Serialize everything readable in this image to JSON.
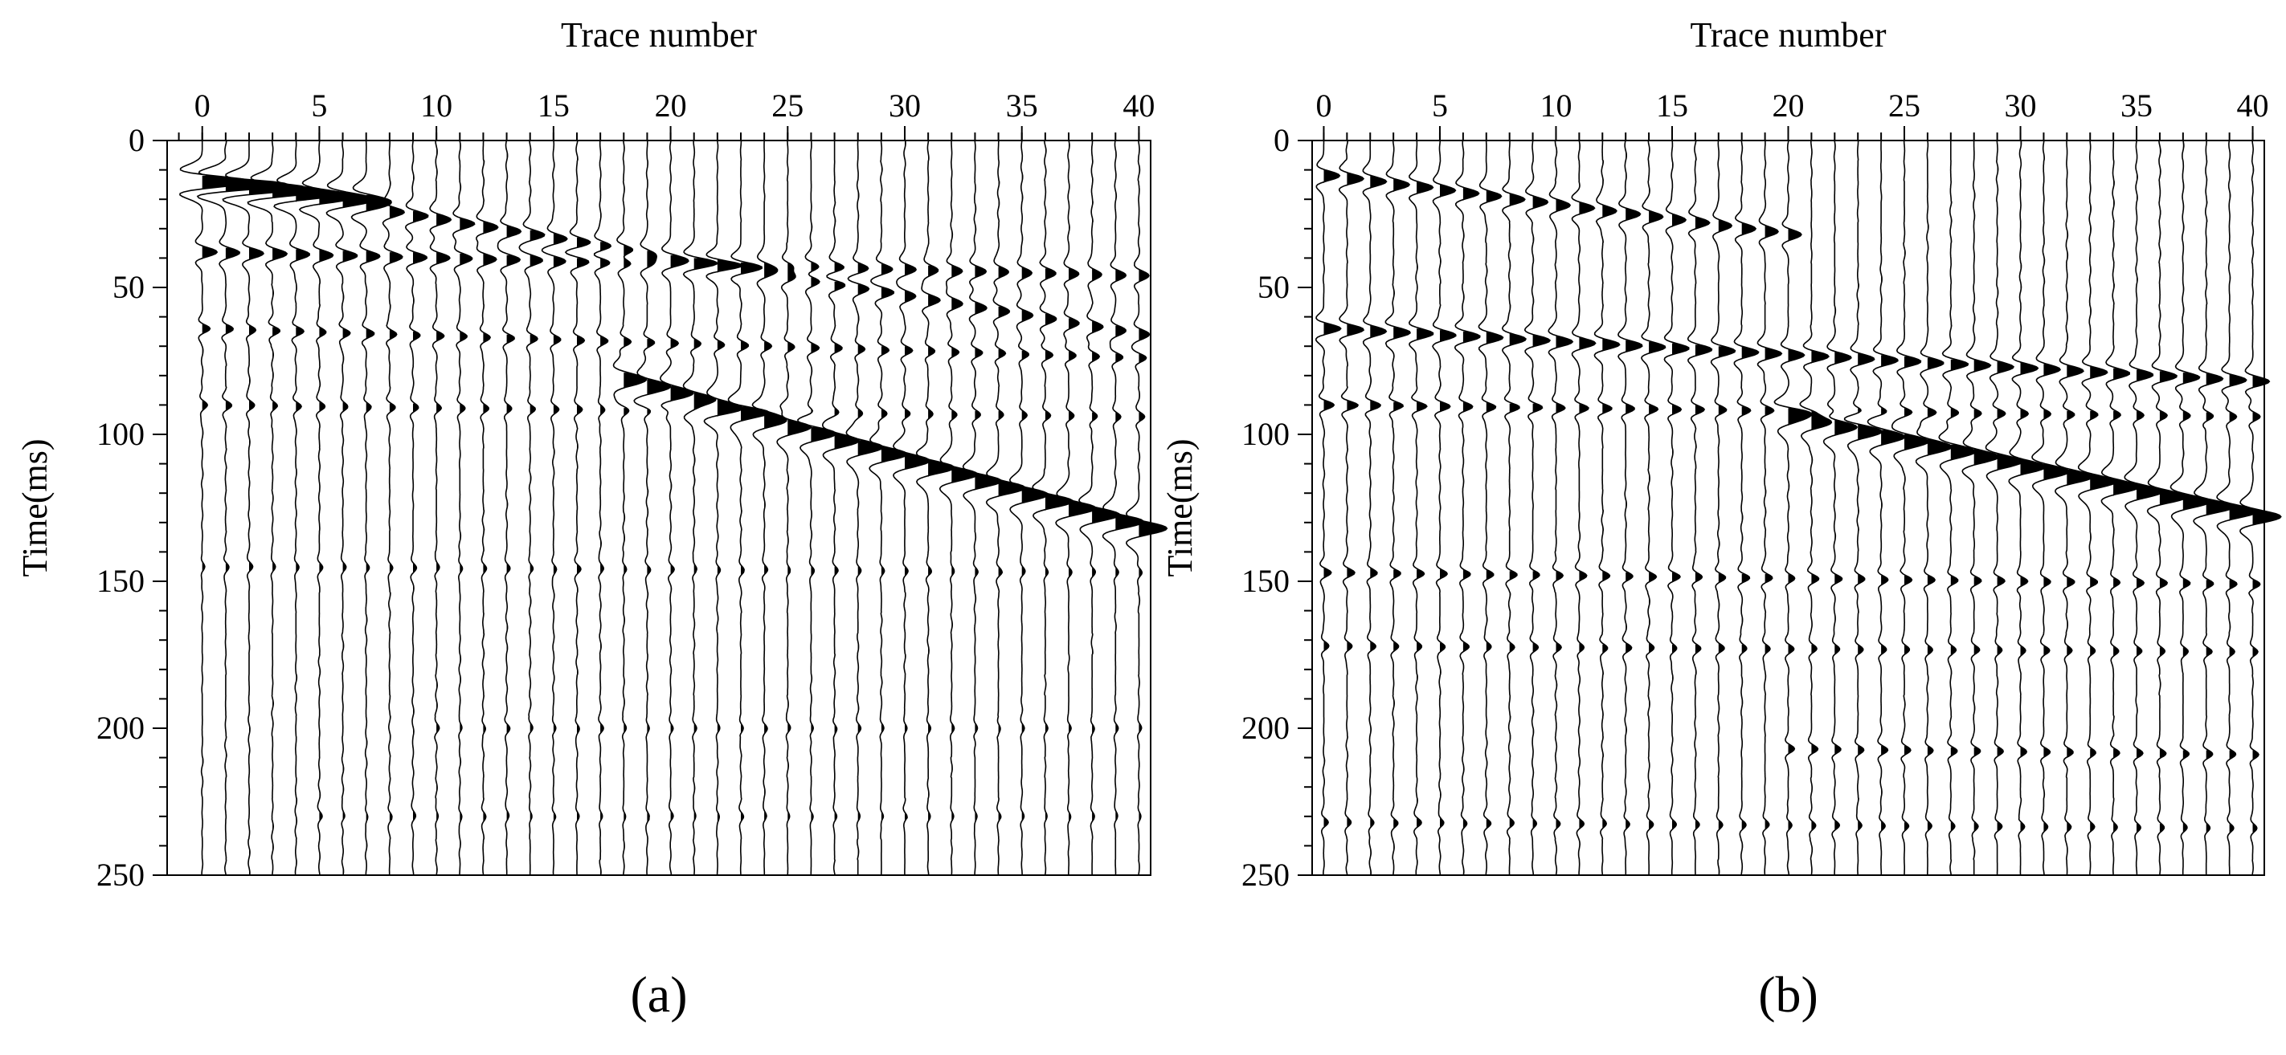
{
  "chart_data": [
    {
      "type": "line",
      "panel_label": "(a)",
      "xlabel": "Trace number",
      "ylabel": "Time(ms)",
      "x_ticks": [
        0,
        5,
        10,
        15,
        20,
        25,
        30,
        35,
        40
      ],
      "y_ticks": [
        0,
        50,
        100,
        150,
        200,
        250
      ],
      "xlim": [
        -1.5,
        40.5
      ],
      "ylim": [
        0,
        250
      ],
      "x_axis_position": "top",
      "y_axis_inverted": true,
      "traces": [
        0,
        1,
        2,
        3,
        4,
        5,
        6,
        7,
        8,
        9,
        10,
        11,
        12,
        13,
        14,
        15,
        16,
        17,
        18,
        19,
        20,
        21,
        22,
        23,
        24,
        25,
        26,
        27,
        28,
        29,
        30,
        31,
        32,
        33,
        34,
        35,
        36,
        37,
        38,
        39,
        40
      ],
      "events": [
        {
          "t0": 14,
          "slope": 0.9,
          "amp": 2.4,
          "decay": 0.08,
          "from": 0,
          "to": 7,
          "w": 3.5
        },
        {
          "t0": 14,
          "slope": 1.3,
          "amp": 0.8,
          "decay": 0.012,
          "from": 1,
          "to": 40,
          "w": 3.0
        },
        {
          "t0": 38,
          "slope": 0.2,
          "amp": 0.7,
          "decay": 0.01,
          "from": 0,
          "to": 40,
          "w": 3.0
        },
        {
          "t0": 64,
          "slope": 0.25,
          "amp": 0.35,
          "decay": 0.0,
          "from": 0,
          "to": 40,
          "w": 2.5
        },
        {
          "t0": 90,
          "slope": 0.1,
          "amp": 0.25,
          "decay": 0.0,
          "from": 0,
          "to": 40,
          "w": 2.5
        },
        {
          "t0": 40,
          "slope": 2.3,
          "amp": 0.9,
          "decay": -0.01,
          "from": 18,
          "to": 40,
          "w": 4.0
        },
        {
          "t0": 145,
          "slope": 0.05,
          "amp": 0.15,
          "decay": 0.0,
          "from": 0,
          "to": 40,
          "w": 2.5
        },
        {
          "t0": 200,
          "slope": 0.0,
          "amp": 0.12,
          "decay": 0.0,
          "from": 10,
          "to": 40,
          "w": 2.5
        },
        {
          "t0": 230,
          "slope": 0.0,
          "amp": 0.1,
          "decay": 0.0,
          "from": 5,
          "to": 40,
          "w": 2.5
        }
      ]
    },
    {
      "type": "line",
      "panel_label": "(b)",
      "xlabel": "Trace number",
      "ylabel": "Time(ms)",
      "x_ticks": [
        0,
        5,
        10,
        15,
        20,
        25,
        30,
        35,
        40
      ],
      "y_ticks": [
        0,
        50,
        100,
        150,
        200,
        250
      ],
      "xlim": [
        -0.5,
        40.5
      ],
      "ylim": [
        0,
        250
      ],
      "x_axis_position": "top",
      "y_axis_inverted": true,
      "traces": [
        0,
        1,
        2,
        3,
        4,
        5,
        6,
        7,
        8,
        9,
        10,
        11,
        12,
        13,
        14,
        15,
        16,
        17,
        18,
        19,
        20,
        21,
        22,
        23,
        24,
        25,
        26,
        27,
        28,
        29,
        30,
        31,
        32,
        33,
        34,
        35,
        36,
        37,
        38,
        39,
        40
      ],
      "events": [
        {
          "t0": 12,
          "slope": 1.0,
          "amp": 0.8,
          "decay": 0.012,
          "from": 0,
          "to": 20,
          "w": 3.0
        },
        {
          "t0": 64,
          "slope": 0.45,
          "amp": 0.8,
          "decay": 0.0,
          "from": 0,
          "to": 40,
          "w": 3.0
        },
        {
          "t0": 90,
          "slope": 0.1,
          "amp": 0.5,
          "decay": 0.01,
          "from": 0,
          "to": 40,
          "w": 2.5
        },
        {
          "t0": 60,
          "slope": 1.7,
          "amp": 0.9,
          "decay": -0.01,
          "from": 20,
          "to": 40,
          "w": 4.0
        },
        {
          "t0": 147,
          "slope": 0.1,
          "amp": 0.35,
          "decay": 0.0,
          "from": 0,
          "to": 40,
          "w": 2.5
        },
        {
          "t0": 172,
          "slope": 0.05,
          "amp": 0.25,
          "decay": 0.0,
          "from": 0,
          "to": 40,
          "w": 2.5
        },
        {
          "t0": 205,
          "slope": 0.1,
          "amp": 0.3,
          "decay": 0.0,
          "from": 20,
          "to": 40,
          "w": 2.5
        },
        {
          "t0": 232,
          "slope": 0.05,
          "amp": 0.2,
          "decay": 0.0,
          "from": 0,
          "to": 40,
          "w": 2.5
        }
      ]
    }
  ]
}
